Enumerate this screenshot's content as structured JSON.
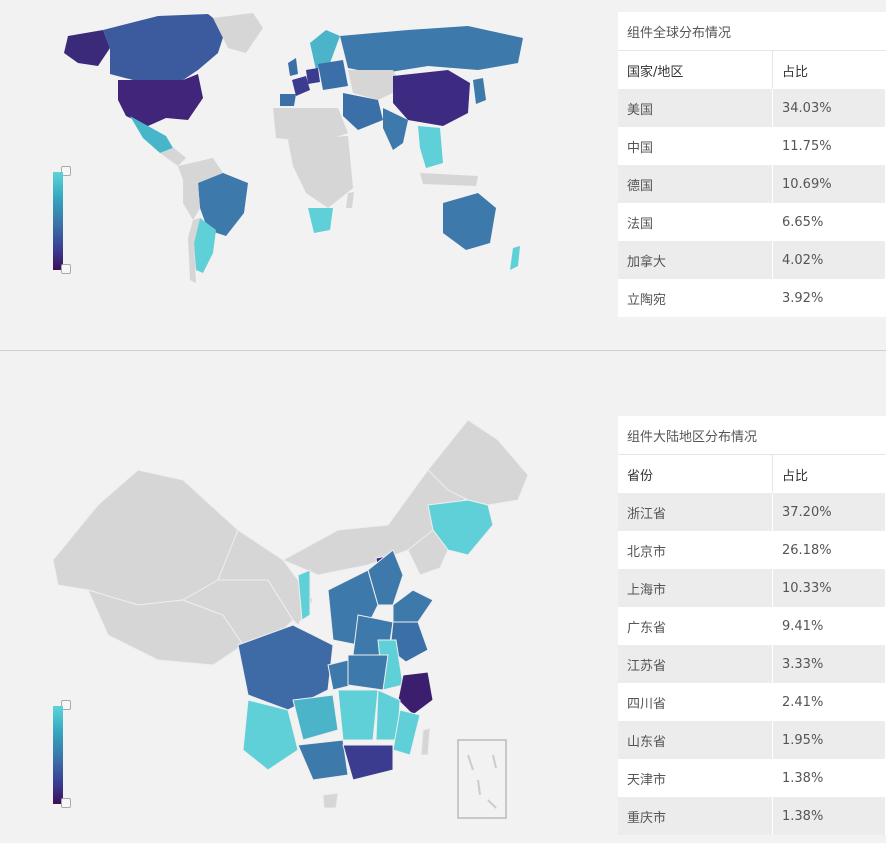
{
  "world": {
    "caption": "组件全球分布情况",
    "columns": [
      "国家/地区",
      "占比"
    ],
    "rows": [
      {
        "name": "美国",
        "value": "34.03%"
      },
      {
        "name": "中国",
        "value": "11.75%"
      },
      {
        "name": "德国",
        "value": "10.69%"
      },
      {
        "name": "法国",
        "value": "6.65%"
      },
      {
        "name": "加拿大",
        "value": "4.02%"
      },
      {
        "name": "立陶宛",
        "value": "3.92%"
      }
    ]
  },
  "china": {
    "caption": "组件大陆地区分布情况",
    "columns": [
      "省份",
      "占比"
    ],
    "rows": [
      {
        "name": "浙江省",
        "value": "37.20%"
      },
      {
        "name": "北京市",
        "value": "26.18%"
      },
      {
        "name": "上海市",
        "value": "10.33%"
      },
      {
        "name": "广东省",
        "value": "9.41%"
      },
      {
        "name": "江苏省",
        "value": "3.33%"
      },
      {
        "name": "四川省",
        "value": "2.41%"
      },
      {
        "name": "山东省",
        "value": "1.95%"
      },
      {
        "name": "天津市",
        "value": "1.38%"
      },
      {
        "name": "重庆市",
        "value": "1.38%"
      }
    ]
  },
  "colors": {
    "scale_low": "#5fd3da",
    "scale_mid": "#3b6fa8",
    "scale_high": "#3b0f5a",
    "no_data": "#d6d6d6"
  }
}
